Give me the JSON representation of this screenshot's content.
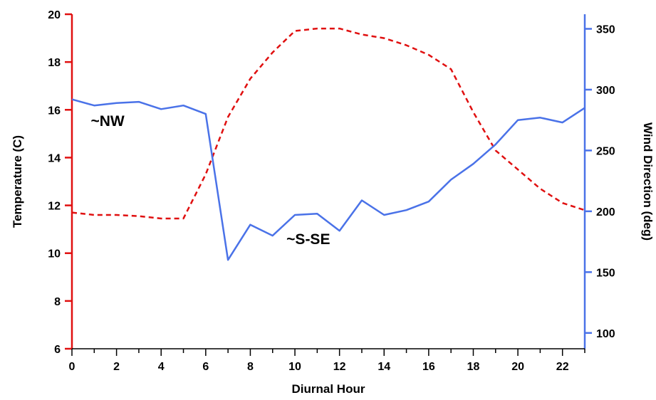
{
  "chart_data": {
    "type": "line",
    "x": [
      0,
      1,
      2,
      3,
      4,
      5,
      6,
      7,
      8,
      9,
      10,
      11,
      12,
      13,
      14,
      15,
      16,
      17,
      18,
      19,
      20,
      21,
      22,
      23
    ],
    "x_ticks": [
      0,
      2,
      4,
      6,
      8,
      10,
      12,
      14,
      16,
      18,
      20,
      22
    ],
    "xlabel": "Diurnal Hour",
    "xlim": [
      0,
      23
    ],
    "y_left": {
      "label": "Temperature (C)",
      "lim": [
        6,
        20
      ],
      "ticks": [
        6,
        8,
        10,
        12,
        14,
        16,
        18,
        20
      ],
      "color": "#e01010"
    },
    "y_right": {
      "label": "Wind Direction (deg)",
      "lim": [
        87,
        362
      ],
      "ticks": [
        100,
        150,
        200,
        250,
        300,
        350
      ],
      "color": "#4a72e8"
    },
    "series": [
      {
        "axis": "left",
        "style": "dashed",
        "color": "#e01010",
        "values": [
          11.7,
          11.6,
          11.6,
          11.55,
          11.45,
          11.45,
          13.3,
          15.7,
          17.3,
          18.4,
          19.3,
          19.4,
          19.4,
          19.15,
          19.0,
          18.7,
          18.3,
          17.7,
          15.9,
          14.3,
          13.5,
          12.7,
          12.1,
          11.8
        ]
      },
      {
        "axis": "right",
        "style": "solid",
        "color": "#4a72e8",
        "values": [
          292,
          287,
          289,
          290,
          284,
          287,
          280,
          160,
          189,
          180,
          197,
          198,
          184,
          209,
          197,
          201,
          208,
          226,
          239,
          255,
          275,
          277,
          273,
          285
        ]
      }
    ],
    "annotations": [
      {
        "text": "~NW",
        "x": 1.6,
        "y_right": 270
      },
      {
        "text": "~S-SE",
        "x": 10.6,
        "y_right": 173
      }
    ],
    "grid": false,
    "legend": "none"
  }
}
